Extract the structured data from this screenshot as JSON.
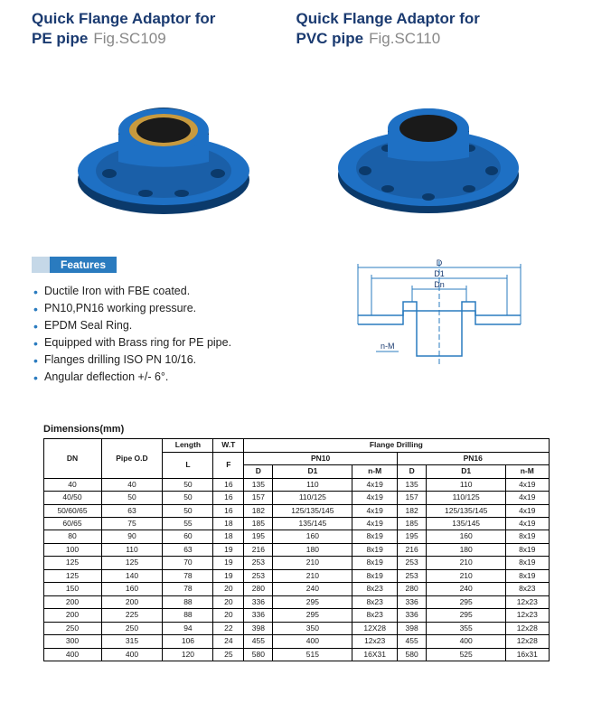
{
  "header": {
    "left": {
      "line1": "Quick Flange Adaptor for",
      "line2_bold": "PE pipe",
      "fig": "Fig.SC109"
    },
    "right": {
      "line1": "Quick Flange Adaptor for",
      "line2_bold": "PVC pipe",
      "fig": "Fig.SC110"
    }
  },
  "colors": {
    "title": "#1a3a70",
    "badge_bg": "#2a7bbf",
    "badge_prefix": "#c5d8e8",
    "flange_blue": "#1e70c4",
    "flange_shadow": "#0b3a6b",
    "brass": "#c89a3e",
    "diagram_line": "#2a7bbf"
  },
  "features": {
    "title": "Features",
    "items": [
      "Ductile Iron with FBE coated.",
      "PN10,PN16 working pressure.",
      "EPDM Seal Ring.",
      "Equipped with Brass ring for PE pipe.",
      "Flanges drilling ISO PN 10/16.",
      "Angular deflection +/- 6°."
    ]
  },
  "diagram": {
    "labels": {
      "D": "D",
      "D1": "D1",
      "Dn": "Dn",
      "nM": "n-M"
    }
  },
  "table": {
    "title": "Dimensions(mm)",
    "head": {
      "dn": "DN",
      "od": "Pipe O.D",
      "length": "Length",
      "wt": "W.T",
      "fd": "Flange Drilling",
      "pn10": "PN10",
      "pn16": "PN16",
      "L": "L",
      "F": "F",
      "D": "D",
      "D1": "D1",
      "nM": "n-M"
    },
    "rows": [
      [
        "40",
        "40",
        "50",
        "16",
        "135",
        "110",
        "4x19",
        "135",
        "110",
        "4x19"
      ],
      [
        "40/50",
        "50",
        "50",
        "16",
        "157",
        "110/125",
        "4x19",
        "157",
        "110/125",
        "4x19"
      ],
      [
        "50/60/65",
        "63",
        "50",
        "16",
        "182",
        "125/135/145",
        "4x19",
        "182",
        "125/135/145",
        "4x19"
      ],
      [
        "60/65",
        "75",
        "55",
        "18",
        "185",
        "135/145",
        "4x19",
        "185",
        "135/145",
        "4x19"
      ],
      [
        "80",
        "90",
        "60",
        "18",
        "195",
        "160",
        "8x19",
        "195",
        "160",
        "8x19"
      ],
      [
        "100",
        "110",
        "63",
        "19",
        "216",
        "180",
        "8x19",
        "216",
        "180",
        "8x19"
      ],
      [
        "125",
        "125",
        "70",
        "19",
        "253",
        "210",
        "8x19",
        "253",
        "210",
        "8x19"
      ],
      [
        "125",
        "140",
        "78",
        "19",
        "253",
        "210",
        "8x19",
        "253",
        "210",
        "8x19"
      ],
      [
        "150",
        "160",
        "78",
        "20",
        "280",
        "240",
        "8x23",
        "280",
        "240",
        "8x23"
      ],
      [
        "200",
        "200",
        "88",
        "20",
        "336",
        "295",
        "8x23",
        "336",
        "295",
        "12x23"
      ],
      [
        "200",
        "225",
        "88",
        "20",
        "336",
        "295",
        "8x23",
        "336",
        "295",
        "12x23"
      ],
      [
        "250",
        "250",
        "94",
        "22",
        "398",
        "350",
        "12X28",
        "398",
        "355",
        "12x28"
      ],
      [
        "300",
        "315",
        "106",
        "24",
        "455",
        "400",
        "12x23",
        "455",
        "400",
        "12x28"
      ],
      [
        "400",
        "400",
        "120",
        "25",
        "580",
        "515",
        "16X31",
        "580",
        "525",
        "16x31"
      ]
    ]
  }
}
